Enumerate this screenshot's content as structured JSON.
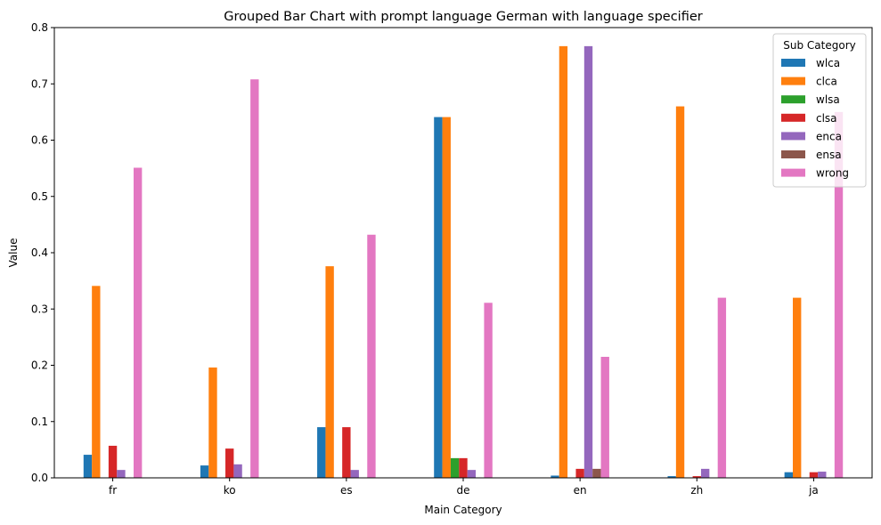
{
  "chart_data": {
    "type": "bar",
    "title": "Grouped Bar Chart with prompt language German with language specifier",
    "xlabel": "Main Category",
    "ylabel": "Value",
    "ylim": [
      0,
      0.8
    ],
    "yticks": [
      "0.0",
      "0.1",
      "0.2",
      "0.3",
      "0.4",
      "0.5",
      "0.6",
      "0.7",
      "0.8"
    ],
    "categories": [
      "fr",
      "ko",
      "es",
      "de",
      "en",
      "zh",
      "ja"
    ],
    "legend": {
      "title": "Sub Category",
      "position": "top-right"
    },
    "grid": false,
    "series": [
      {
        "name": "wlca",
        "color": "#1f77b4",
        "values": [
          0.041,
          0.022,
          0.09,
          0.641,
          0.004,
          0.003,
          0.01
        ]
      },
      {
        "name": "clca",
        "color": "#ff7f0e",
        "values": [
          0.341,
          0.196,
          0.376,
          0.641,
          0.767,
          0.66,
          0.32
        ]
      },
      {
        "name": "wlsa",
        "color": "#2ca02c",
        "values": [
          0.0,
          0.0,
          0.0,
          0.035,
          0.0,
          0.0,
          0.0
        ]
      },
      {
        "name": "clsa",
        "color": "#d62728",
        "values": [
          0.057,
          0.052,
          0.09,
          0.035,
          0.016,
          0.003,
          0.01
        ]
      },
      {
        "name": "enca",
        "color": "#9467bd",
        "values": [
          0.014,
          0.024,
          0.014,
          0.014,
          0.767,
          0.016,
          0.011
        ]
      },
      {
        "name": "ensa",
        "color": "#8c564b",
        "values": [
          0.0,
          0.0,
          0.0,
          0.0,
          0.016,
          0.0,
          0.0
        ]
      },
      {
        "name": "wrong",
        "color": "#e377c2",
        "values": [
          0.551,
          0.708,
          0.432,
          0.311,
          0.215,
          0.32,
          0.65
        ]
      }
    ]
  }
}
